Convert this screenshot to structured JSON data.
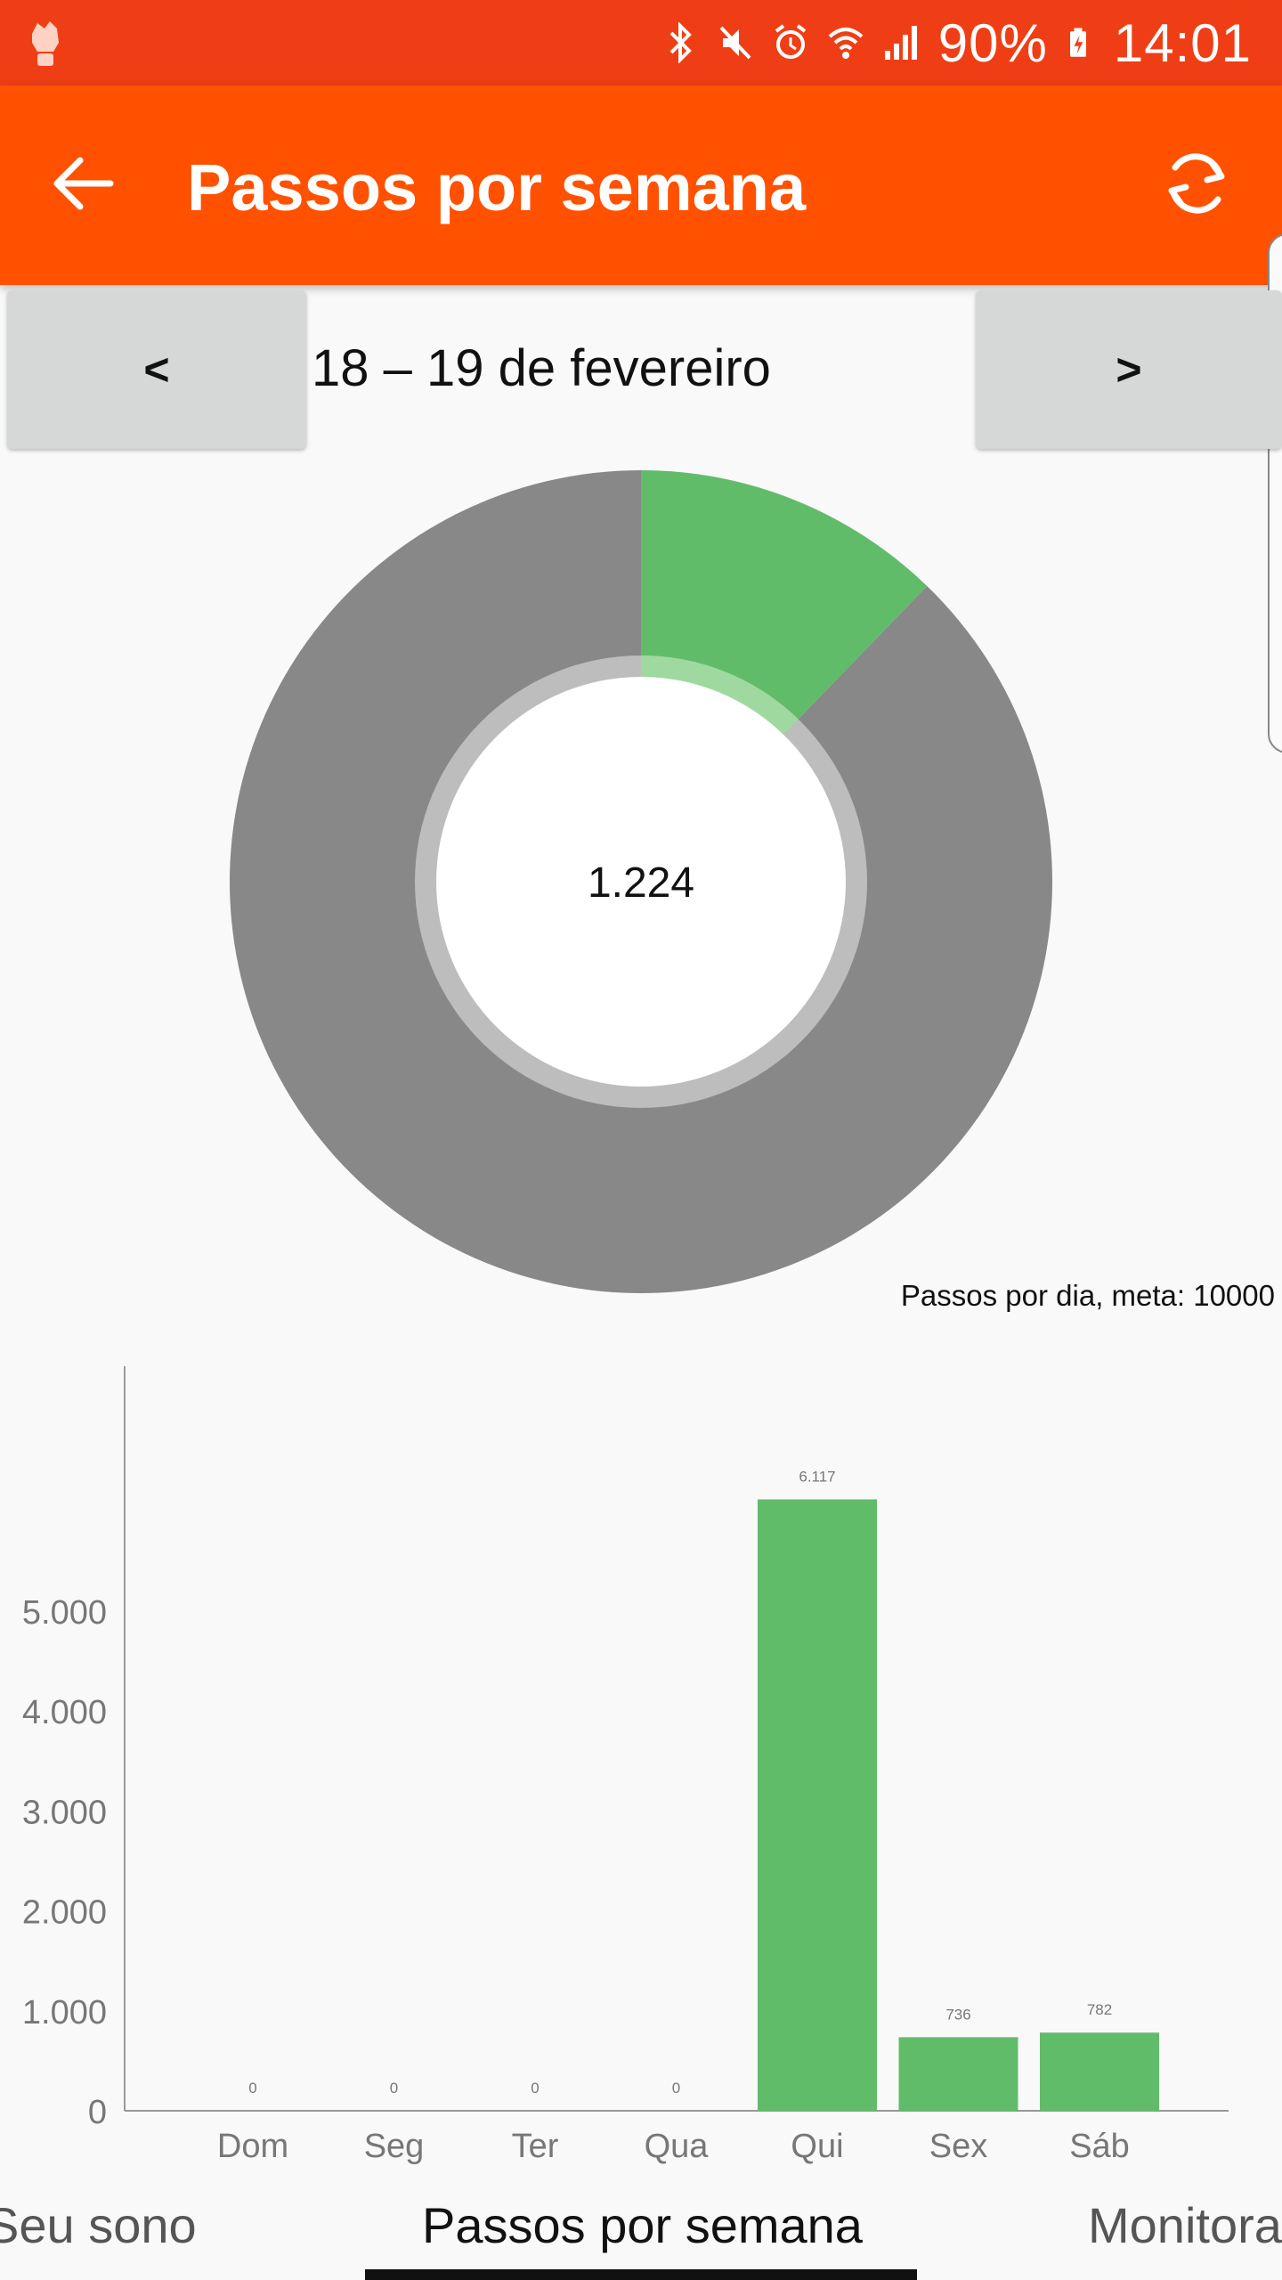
{
  "status_bar": {
    "battery": "90%",
    "time": "14:01",
    "icons": [
      "app-fist-icon",
      "bluetooth-icon",
      "mute-icon",
      "alarm-icon",
      "wifi-icon",
      "signal-icon",
      "battery-charging-icon"
    ]
  },
  "app_bar": {
    "title": "Passos por semana",
    "back_icon": "arrow-left-icon",
    "action_icon": "refresh-icon"
  },
  "date_nav": {
    "prev_label": "<",
    "next_label": ">",
    "range": "18 – 19 de fevereiro"
  },
  "colors": {
    "status_bar": "#ef3e15",
    "app_bar": "#ff5100",
    "green": "#61bc6a",
    "light_green": "#9fd99f",
    "gray": "#888888",
    "ring": "#bdbdbd"
  },
  "chart_data": [
    {
      "type": "pie",
      "center_value": "1.224",
      "caption": "Passos por dia, meta: 10000",
      "goal": 10000,
      "value": 1224,
      "slices": [
        {
          "value": 1224,
          "color": "#61bc6a"
        },
        {
          "value": 8776,
          "color": "#888888"
        }
      ]
    },
    {
      "type": "bar",
      "categories": [
        "Dom",
        "Seg",
        "Ter",
        "Qua",
        "Qui",
        "Sex",
        "Sáb"
      ],
      "values": [
        0,
        0,
        0,
        0,
        6117,
        736,
        782
      ],
      "value_labels": [
        "0",
        "0",
        "0",
        "0",
        "6.117",
        "736",
        "782"
      ],
      "y_ticks": [
        0,
        1000,
        2000,
        3000,
        4000,
        5000
      ],
      "y_tick_labels": [
        "0",
        "1.000",
        "2.000",
        "3.000",
        "4.000",
        "5.000"
      ],
      "ylim": [
        0,
        6700
      ],
      "color": "#61bc6a"
    }
  ],
  "tabs": {
    "left": "Seu sono",
    "center": "Passos por semana",
    "right": "Monitora"
  }
}
